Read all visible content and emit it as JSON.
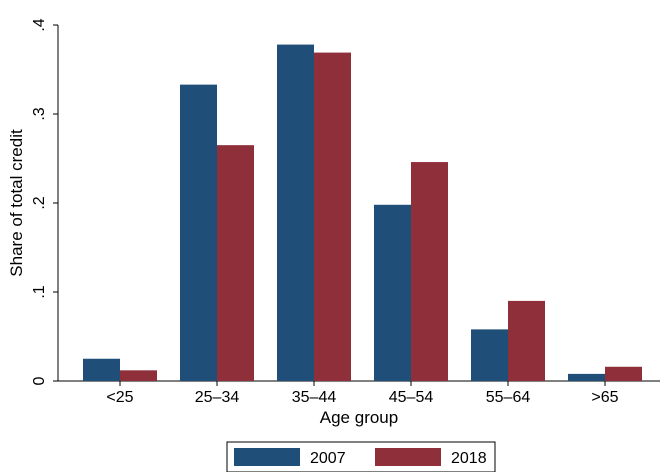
{
  "chart_data": {
    "type": "bar",
    "title": "",
    "xlabel": "Age group",
    "ylabel": "Share of total credit",
    "categories": [
      "<25",
      "25–34",
      "35–44",
      "45–54",
      "55–64",
      ">65"
    ],
    "series": [
      {
        "name": "2007",
        "color": "#1f4e79",
        "values": [
          0.025,
          0.333,
          0.378,
          0.198,
          0.058,
          0.008
        ]
      },
      {
        "name": "2018",
        "color": "#8f2f3a",
        "values": [
          0.012,
          0.265,
          0.369,
          0.246,
          0.09,
          0.016
        ]
      }
    ],
    "ylim": [
      0,
      0.4
    ],
    "yticks": [
      0,
      0.1,
      0.2,
      0.3,
      0.4
    ],
    "ytick_labels": [
      "0",
      ".1",
      ".2",
      ".3",
      ".4"
    ],
    "grid": false,
    "legend_position": "bottom"
  }
}
